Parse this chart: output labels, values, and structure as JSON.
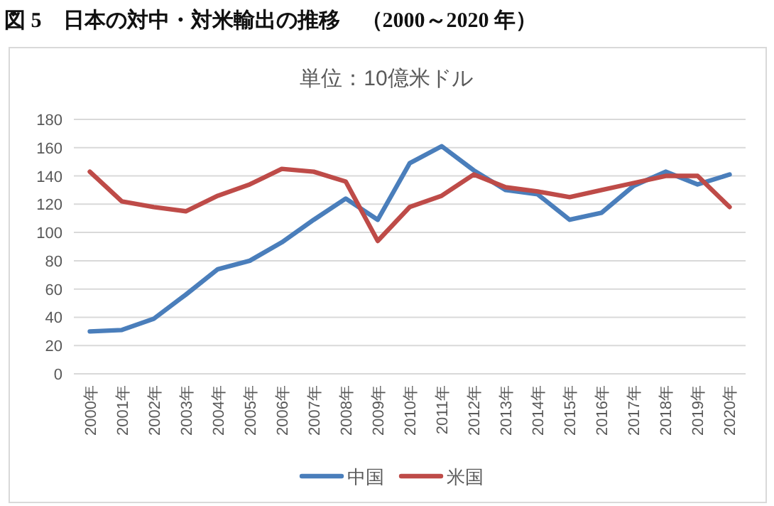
{
  "chart_data": {
    "type": "line",
    "title": "図 5　日本の対中・対米輸出の推移　（2000～2020 年）",
    "subtitle": "単位：10億米ドル",
    "categories": [
      "2000年",
      "2001年",
      "2002年",
      "2003年",
      "2004年",
      "2005年",
      "2006年",
      "2007年",
      "2008年",
      "2009年",
      "2010年",
      "2011年",
      "2012年",
      "2013年",
      "2014年",
      "2015年",
      "2016年",
      "2017年",
      "2018年",
      "2019年",
      "2020年"
    ],
    "series": [
      {
        "name": "中国",
        "color": "#4a7ebb",
        "values": [
          30,
          31,
          39,
          56,
          74,
          80,
          93,
          109,
          124,
          109,
          149,
          161,
          144,
          130,
          127,
          109,
          114,
          133,
          143,
          134,
          141
        ]
      },
      {
        "name": "米国",
        "color": "#be4b48",
        "values": [
          143,
          122,
          118,
          115,
          126,
          134,
          145,
          143,
          136,
          94,
          118,
          126,
          141,
          132,
          129,
          125,
          130,
          135,
          140,
          140,
          118
        ]
      }
    ],
    "ylim": [
      0,
      180
    ],
    "yticks": [
      0,
      20,
      40,
      60,
      80,
      100,
      120,
      140,
      160,
      180
    ],
    "grid": "y",
    "legend": "bottom",
    "marker": "none",
    "line_style": "solid"
  }
}
